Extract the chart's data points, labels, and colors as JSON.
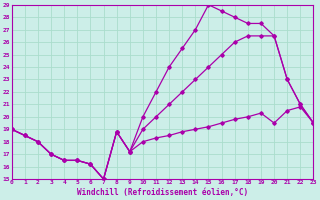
{
  "xlabel": "Windchill (Refroidissement éolien,°C)",
  "xlim": [
    0,
    23
  ],
  "ylim": [
    15,
    29
  ],
  "xticks": [
    0,
    1,
    2,
    3,
    4,
    5,
    6,
    7,
    8,
    9,
    10,
    11,
    12,
    13,
    14,
    15,
    16,
    17,
    18,
    19,
    20,
    21,
    22,
    23
  ],
  "yticks": [
    15,
    16,
    17,
    18,
    19,
    20,
    21,
    22,
    23,
    24,
    25,
    26,
    27,
    28,
    29
  ],
  "bg_color": "#cceee8",
  "grid_color": "#aaddcc",
  "line_color": "#aa00aa",
  "series": [
    {
      "x": [
        0,
        1,
        2,
        3,
        4,
        5,
        6,
        7,
        8,
        9,
        10,
        11,
        12,
        13,
        14,
        15,
        16,
        17,
        18,
        19,
        20,
        21,
        22,
        23
      ],
      "y": [
        19,
        18.5,
        18,
        17,
        16.5,
        16.5,
        16.2,
        15.0,
        18.8,
        17.2,
        18.0,
        18.3,
        18.5,
        18.8,
        19.0,
        19.2,
        19.5,
        19.8,
        20.0,
        20.3,
        19.5,
        20.5,
        20.8,
        19.5
      ]
    },
    {
      "x": [
        0,
        1,
        2,
        3,
        4,
        5,
        6,
        7,
        8,
        9,
        10,
        11,
        12,
        13,
        14,
        15,
        16,
        17,
        18,
        19,
        20,
        21,
        22,
        23
      ],
      "y": [
        19,
        18.5,
        18,
        17,
        16.5,
        16.5,
        16.2,
        15.0,
        18.8,
        17.2,
        19.0,
        20.0,
        21.0,
        22.0,
        23.0,
        24.0,
        25.0,
        26.0,
        26.5,
        26.5,
        26.5,
        23.0,
        21.0,
        19.5
      ]
    },
    {
      "x": [
        0,
        1,
        2,
        3,
        4,
        5,
        6,
        7,
        8,
        9,
        10,
        11,
        12,
        13,
        14,
        15,
        16,
        17,
        18,
        19,
        20,
        21,
        22,
        23
      ],
      "y": [
        19,
        18.5,
        18,
        17,
        16.5,
        16.5,
        16.2,
        15.0,
        18.8,
        17.2,
        20.0,
        22.0,
        24.0,
        25.5,
        27.0,
        29.0,
        28.5,
        28.0,
        27.5,
        27.5,
        26.5,
        23.0,
        21.0,
        19.5
      ]
    }
  ]
}
